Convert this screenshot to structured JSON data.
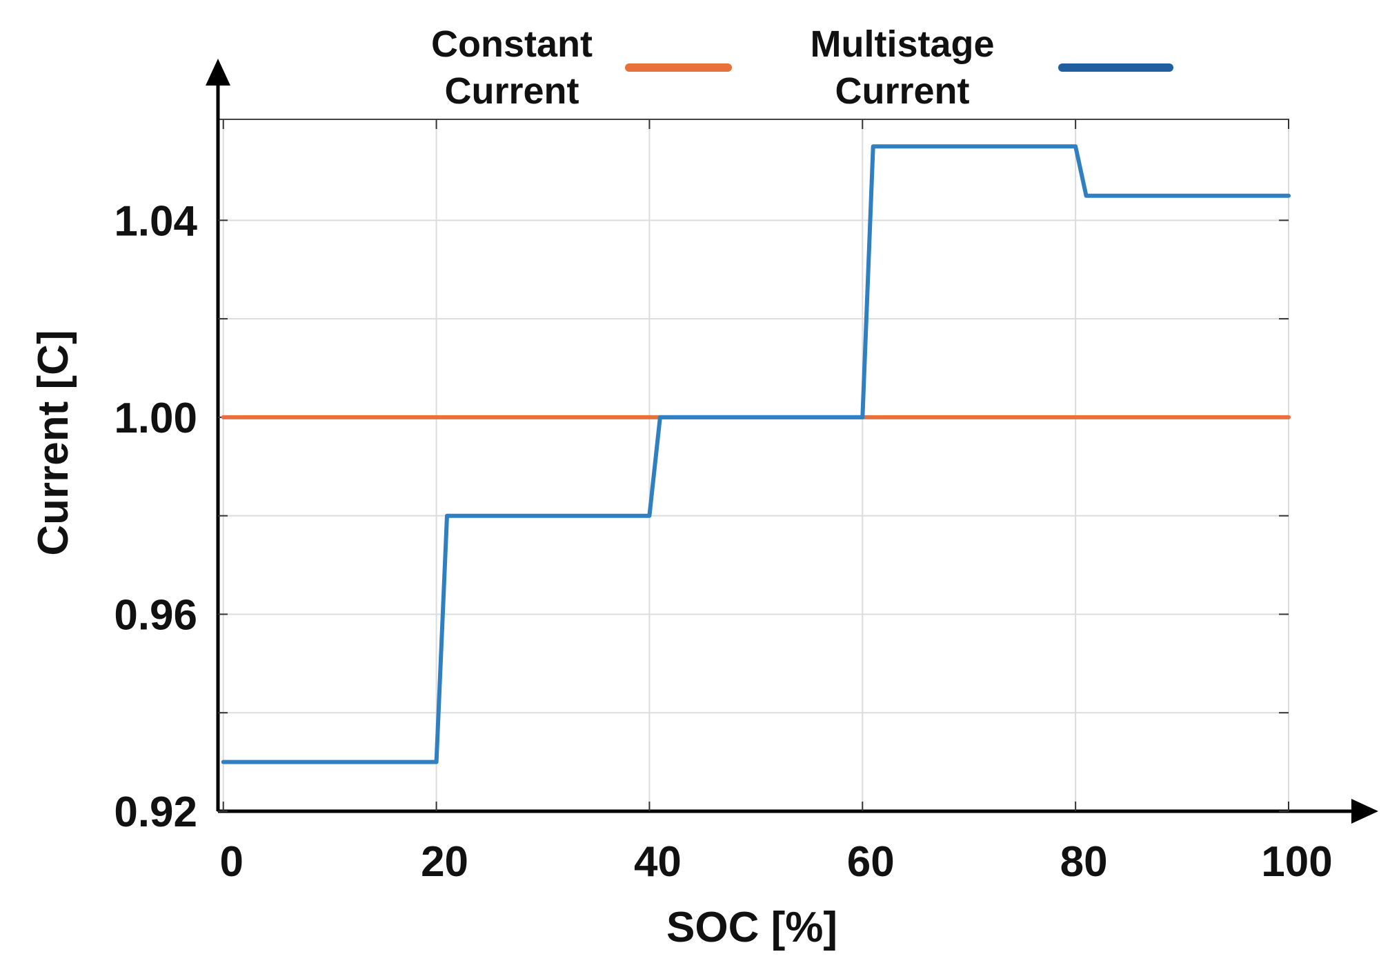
{
  "chart_data": {
    "type": "line",
    "xlabel": "SOC [%]",
    "ylabel": "Current [C]",
    "xlim": [
      -0.5,
      100
    ],
    "ylim": [
      0.92,
      1.0605
    ],
    "x_ticks": [
      0,
      20,
      40,
      60,
      80,
      100
    ],
    "x_tick_labels": [
      "0",
      "20",
      "40",
      "60",
      "80",
      "100"
    ],
    "y_ticks": [
      0.92,
      0.96,
      1.0,
      1.04
    ],
    "y_tick_labels": [
      "0.92",
      "0.96",
      "1.00",
      "1.04"
    ],
    "y_minor_grid": [
      0.94,
      0.98,
      1.02
    ],
    "grid": true,
    "legend_position": "top",
    "series": [
      {
        "name_lines": [
          "Constant",
          "Current"
        ],
        "color": "#e8703a",
        "x": [
          0,
          100
        ],
        "values": [
          1.0,
          1.0
        ]
      },
      {
        "name_lines": [
          "Multistage",
          "Current"
        ],
        "color": "#2f7fc1",
        "legend_color": "#1f5fa0",
        "x": [
          0,
          20,
          21,
          40,
          41,
          60,
          61,
          80,
          81,
          100
        ],
        "values": [
          0.93,
          0.93,
          0.98,
          0.98,
          1.0,
          1.0,
          1.055,
          1.055,
          1.045,
          1.045
        ]
      }
    ]
  }
}
